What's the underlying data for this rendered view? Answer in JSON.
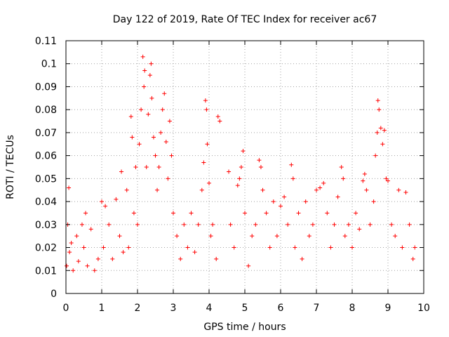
{
  "chart_data": {
    "type": "scatter",
    "title": "Day 122 of 2019, Rate Of TEC Index for receiver ac67",
    "xlabel": "GPS time / hours",
    "ylabel": "ROTI / TECUs",
    "xlim": [
      0,
      10
    ],
    "ylim": [
      0,
      0.11
    ],
    "x_ticks": [
      "0",
      "1",
      "2",
      "3",
      "4",
      "5",
      "6",
      "7",
      "8",
      "9",
      "10"
    ],
    "y_ticks": [
      "0",
      "0.01",
      "0.02",
      "0.03",
      "0.04",
      "0.05",
      "0.06",
      "0.07",
      "0.08",
      "0.09",
      "0.1",
      "0.11"
    ],
    "grid": true,
    "marker": "+",
    "series_color": "#ff0000",
    "series": [
      {
        "name": "ROTI",
        "points": [
          [
            0.02,
            0.012
          ],
          [
            0.05,
            0.03
          ],
          [
            0.08,
            0.046
          ],
          [
            0.1,
            0.018
          ],
          [
            0.15,
            0.022
          ],
          [
            0.2,
            0.01
          ],
          [
            0.3,
            0.025
          ],
          [
            0.35,
            0.014
          ],
          [
            0.45,
            0.03
          ],
          [
            0.5,
            0.02
          ],
          [
            0.55,
            0.035
          ],
          [
            0.6,
            0.012
          ],
          [
            0.7,
            0.028
          ],
          [
            0.8,
            0.01
          ],
          [
            0.9,
            0.015
          ],
          [
            1.0,
            0.04
          ],
          [
            1.05,
            0.02
          ],
          [
            1.1,
            0.038
          ],
          [
            1.2,
            0.03
          ],
          [
            1.3,
            0.015
          ],
          [
            1.4,
            0.041
          ],
          [
            1.5,
            0.025
          ],
          [
            1.55,
            0.053
          ],
          [
            1.6,
            0.018
          ],
          [
            1.7,
            0.045
          ],
          [
            1.75,
            0.02
          ],
          [
            1.82,
            0.077
          ],
          [
            1.85,
            0.068
          ],
          [
            1.9,
            0.035
          ],
          [
            1.95,
            0.055
          ],
          [
            2.0,
            0.03
          ],
          [
            2.05,
            0.065
          ],
          [
            2.1,
            0.08
          ],
          [
            2.15,
            0.103
          ],
          [
            2.18,
            0.09
          ],
          [
            2.2,
            0.097
          ],
          [
            2.25,
            0.055
          ],
          [
            2.3,
            0.078
          ],
          [
            2.35,
            0.095
          ],
          [
            2.38,
            0.1
          ],
          [
            2.4,
            0.085
          ],
          [
            2.45,
            0.068
          ],
          [
            2.5,
            0.06
          ],
          [
            2.55,
            0.045
          ],
          [
            2.6,
            0.055
          ],
          [
            2.65,
            0.07
          ],
          [
            2.7,
            0.08
          ],
          [
            2.75,
            0.087
          ],
          [
            2.8,
            0.066
          ],
          [
            2.85,
            0.05
          ],
          [
            2.9,
            0.075
          ],
          [
            2.95,
            0.06
          ],
          [
            3.0,
            0.035
          ],
          [
            3.1,
            0.025
          ],
          [
            3.2,
            0.015
          ],
          [
            3.3,
            0.03
          ],
          [
            3.4,
            0.02
          ],
          [
            3.5,
            0.035
          ],
          [
            3.6,
            0.018
          ],
          [
            3.7,
            0.03
          ],
          [
            3.8,
            0.045
          ],
          [
            3.85,
            0.057
          ],
          [
            3.9,
            0.084
          ],
          [
            3.93,
            0.08
          ],
          [
            3.95,
            0.065
          ],
          [
            4.0,
            0.048
          ],
          [
            4.05,
            0.025
          ],
          [
            4.1,
            0.03
          ],
          [
            4.2,
            0.015
          ],
          [
            4.25,
            0.077
          ],
          [
            4.3,
            0.075
          ],
          [
            4.55,
            0.053
          ],
          [
            4.6,
            0.03
          ],
          [
            4.7,
            0.02
          ],
          [
            4.8,
            0.047
          ],
          [
            4.85,
            0.05
          ],
          [
            4.9,
            0.055
          ],
          [
            4.95,
            0.062
          ],
          [
            5.0,
            0.035
          ],
          [
            5.1,
            0.012
          ],
          [
            5.2,
            0.025
          ],
          [
            5.3,
            0.03
          ],
          [
            5.4,
            0.058
          ],
          [
            5.45,
            0.055
          ],
          [
            5.5,
            0.045
          ],
          [
            5.6,
            0.035
          ],
          [
            5.7,
            0.02
          ],
          [
            5.8,
            0.04
          ],
          [
            5.9,
            0.025
          ],
          [
            6.0,
            0.038
          ],
          [
            6.1,
            0.042
          ],
          [
            6.2,
            0.03
          ],
          [
            6.3,
            0.056
          ],
          [
            6.35,
            0.05
          ],
          [
            6.4,
            0.02
          ],
          [
            6.5,
            0.035
          ],
          [
            6.6,
            0.015
          ],
          [
            6.7,
            0.04
          ],
          [
            6.8,
            0.025
          ],
          [
            6.9,
            0.03
          ],
          [
            7.0,
            0.045
          ],
          [
            7.1,
            0.046
          ],
          [
            7.2,
            0.048
          ],
          [
            7.3,
            0.035
          ],
          [
            7.4,
            0.02
          ],
          [
            7.5,
            0.03
          ],
          [
            7.6,
            0.042
          ],
          [
            7.7,
            0.055
          ],
          [
            7.75,
            0.05
          ],
          [
            7.8,
            0.025
          ],
          [
            7.9,
            0.03
          ],
          [
            8.0,
            0.02
          ],
          [
            8.1,
            0.035
          ],
          [
            8.2,
            0.028
          ],
          [
            8.3,
            0.049
          ],
          [
            8.35,
            0.052
          ],
          [
            8.4,
            0.045
          ],
          [
            8.5,
            0.03
          ],
          [
            8.6,
            0.04
          ],
          [
            8.65,
            0.06
          ],
          [
            8.7,
            0.07
          ],
          [
            8.72,
            0.084
          ],
          [
            8.75,
            0.08
          ],
          [
            8.8,
            0.072
          ],
          [
            8.85,
            0.065
          ],
          [
            8.9,
            0.071
          ],
          [
            8.95,
            0.05
          ],
          [
            9.0,
            0.049
          ],
          [
            9.1,
            0.03
          ],
          [
            9.2,
            0.025
          ],
          [
            9.3,
            0.045
          ],
          [
            9.4,
            0.02
          ],
          [
            9.5,
            0.044
          ],
          [
            9.6,
            0.03
          ],
          [
            9.7,
            0.015
          ],
          [
            9.75,
            0.02
          ]
        ]
      }
    ]
  }
}
